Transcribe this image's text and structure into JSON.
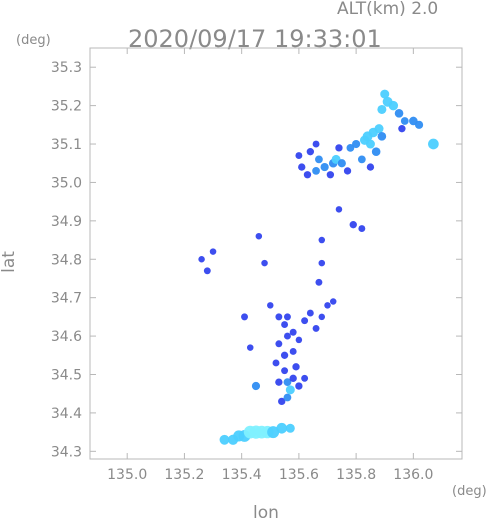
{
  "chart_data": {
    "type": "scatter",
    "title": "2020/09/17 19:33:01",
    "subtitle": "ALT(km) 2.0",
    "xlabel": "lon",
    "ylabel": "lat",
    "x_unit": "(deg)",
    "y_unit": "(deg)",
    "xlim": [
      134.87,
      136.17
    ],
    "ylim": [
      34.28,
      35.35
    ],
    "x_ticks": [
      "135.0",
      "135.2",
      "135.4",
      "135.6",
      "135.8",
      "136.0"
    ],
    "y_ticks": [
      "34.3",
      "34.4",
      "34.5",
      "34.6",
      "34.7",
      "34.8",
      "34.9",
      "35.0",
      "35.1",
      "35.2",
      "35.3"
    ],
    "grid": false,
    "colors": {
      "frame": "#b8b8b8",
      "text": "#8a8a8a",
      "echo_weak": "#3344ee",
      "echo_moderate": "#2f8df2",
      "echo_strong": "#4ccfff",
      "echo_peak": "#7ff0ff"
    },
    "series": [
      {
        "values": [
          [
            135.34,
            34.33,
            0.65
          ],
          [
            135.37,
            34.33,
            0.7
          ],
          [
            135.39,
            34.34,
            0.8
          ],
          [
            135.41,
            34.34,
            0.9
          ],
          [
            135.43,
            34.35,
            1.0
          ],
          [
            135.45,
            34.35,
            1.05
          ],
          [
            135.47,
            34.35,
            1.0
          ],
          [
            135.49,
            34.35,
            0.95
          ],
          [
            135.51,
            34.35,
            0.9
          ],
          [
            135.54,
            34.36,
            0.75
          ],
          [
            135.57,
            34.36,
            0.55
          ],
          [
            135.54,
            34.43,
            0.35
          ],
          [
            135.56,
            34.44,
            0.4
          ],
          [
            135.53,
            34.48,
            0.35
          ],
          [
            135.56,
            34.48,
            0.4
          ],
          [
            135.58,
            34.49,
            0.35
          ],
          [
            135.6,
            34.47,
            0.35
          ],
          [
            135.62,
            34.49,
            0.3
          ],
          [
            135.55,
            34.51,
            0.3
          ],
          [
            135.59,
            34.52,
            0.35
          ],
          [
            135.57,
            34.46,
            0.55
          ],
          [
            135.45,
            34.47,
            0.45
          ],
          [
            135.52,
            34.53,
            0.3
          ],
          [
            135.55,
            34.55,
            0.35
          ],
          [
            135.58,
            34.56,
            0.3
          ],
          [
            135.53,
            34.58,
            0.3
          ],
          [
            135.56,
            34.6,
            0.3
          ],
          [
            135.58,
            34.61,
            0.3
          ],
          [
            135.55,
            34.63,
            0.3
          ],
          [
            135.53,
            34.65,
            0.3
          ],
          [
            135.56,
            34.65,
            0.3
          ],
          [
            135.62,
            34.64,
            0.3
          ],
          [
            135.64,
            34.66,
            0.3
          ],
          [
            135.66,
            34.62,
            0.3
          ],
          [
            135.6,
            34.59,
            0.25
          ],
          [
            135.68,
            34.65,
            0.25
          ],
          [
            135.7,
            34.68,
            0.25
          ],
          [
            135.41,
            34.65,
            0.3
          ],
          [
            135.43,
            34.57,
            0.25
          ],
          [
            135.5,
            34.68,
            0.25
          ],
          [
            135.72,
            34.69,
            0.25
          ],
          [
            135.67,
            34.74,
            0.3
          ],
          [
            135.68,
            34.79,
            0.25
          ],
          [
            135.28,
            34.77,
            0.3
          ],
          [
            135.26,
            34.8,
            0.25
          ],
          [
            135.3,
            34.82,
            0.25
          ],
          [
            135.48,
            34.79,
            0.25
          ],
          [
            135.46,
            34.86,
            0.25
          ],
          [
            135.68,
            34.85,
            0.25
          ],
          [
            135.79,
            34.89,
            0.35
          ],
          [
            135.82,
            34.88,
            0.3
          ],
          [
            135.74,
            34.93,
            0.25
          ],
          [
            135.63,
            35.02,
            0.35
          ],
          [
            135.66,
            35.03,
            0.4
          ],
          [
            135.69,
            35.04,
            0.45
          ],
          [
            135.72,
            35.05,
            0.5
          ],
          [
            135.67,
            35.06,
            0.4
          ],
          [
            135.73,
            35.06,
            0.55
          ],
          [
            135.75,
            35.05,
            0.45
          ],
          [
            135.74,
            35.09,
            0.35
          ],
          [
            135.78,
            35.09,
            0.4
          ],
          [
            135.8,
            35.1,
            0.45
          ],
          [
            135.83,
            35.11,
            0.6
          ],
          [
            135.84,
            35.12,
            0.65
          ],
          [
            135.86,
            35.13,
            0.6
          ],
          [
            135.85,
            35.1,
            0.55
          ],
          [
            135.87,
            35.08,
            0.5
          ],
          [
            135.82,
            35.06,
            0.4
          ],
          [
            135.85,
            35.04,
            0.35
          ],
          [
            135.77,
            35.03,
            0.35
          ],
          [
            135.71,
            35.02,
            0.35
          ],
          [
            135.61,
            35.04,
            0.35
          ],
          [
            135.6,
            35.07,
            0.3
          ],
          [
            135.64,
            35.08,
            0.35
          ],
          [
            135.88,
            35.14,
            0.55
          ],
          [
            135.89,
            35.12,
            0.5
          ],
          [
            135.66,
            35.1,
            0.3
          ],
          [
            135.89,
            35.19,
            0.55
          ],
          [
            135.91,
            35.21,
            0.65
          ],
          [
            135.93,
            35.2,
            0.6
          ],
          [
            135.95,
            35.18,
            0.5
          ],
          [
            135.97,
            35.16,
            0.4
          ],
          [
            136.0,
            35.16,
            0.5
          ],
          [
            136.02,
            35.15,
            0.45
          ],
          [
            135.96,
            35.14,
            0.35
          ],
          [
            135.9,
            35.23,
            0.55
          ],
          [
            136.07,
            35.1,
            0.75
          ]
        ]
      }
    ]
  }
}
